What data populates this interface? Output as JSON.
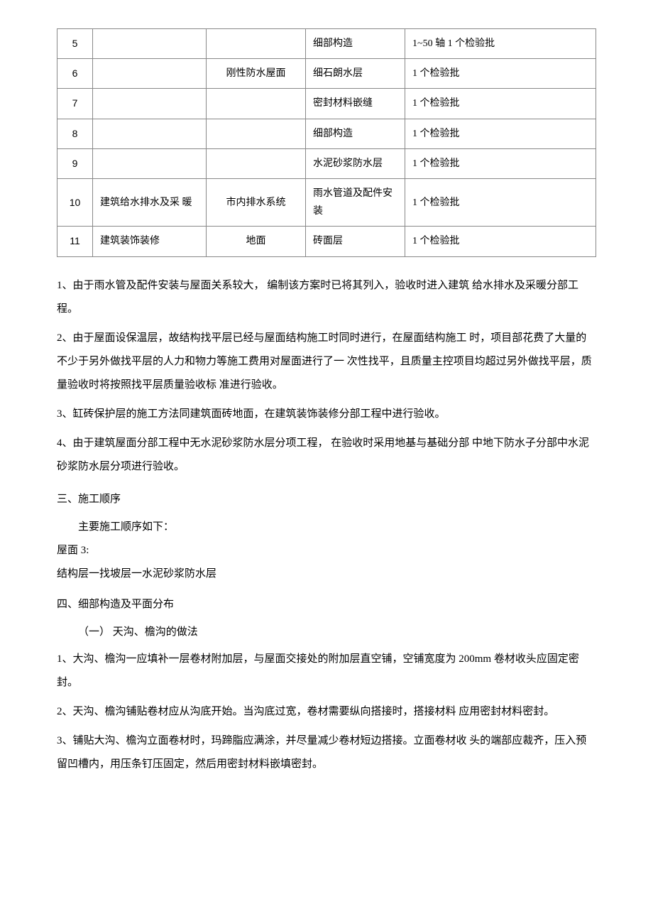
{
  "table": {
    "rows": [
      {
        "num": "5",
        "col2": "",
        "col3": "",
        "col4": "细部构造",
        "col5": "1~50 轴 1 个检验批"
      },
      {
        "num": "6",
        "col2": "",
        "col3": "刚性防水屋面",
        "col4": "细石朗水层",
        "col5": "1 个检验批"
      },
      {
        "num": "7",
        "col2": "",
        "col3": "",
        "col4": "密封材料嵌缝",
        "col5": "1 个检验批"
      },
      {
        "num": "8",
        "col2": "",
        "col3": "",
        "col4": "细部构造",
        "col5": "1 个检验批"
      },
      {
        "num": "9",
        "col2": "",
        "col3": "",
        "col4": "水泥砂浆防水层",
        "col5": "1 个检验批"
      },
      {
        "num": "10",
        "col2": "建筑给水排水及采 暖",
        "col3": "市内排水系统",
        "col4": "雨水管道及配件安装",
        "col5": "1 个检验批"
      },
      {
        "num": "11",
        "col2": "建筑装饰装修",
        "col3": "地面",
        "col4": "砖面层",
        "col5": "1 个检验批"
      }
    ]
  },
  "notes": [
    "1、由于雨水管及配件安装与屋面关系较大， 编制该方案时已将其列入，验收时进入建筑 给水排水及采暖分部工程。",
    "2、由于屋面设保温层，故结构找平层已经与屋面结构施工时同时进行，在屋面结构施工 时，项目部花费了大量的不少于另外做找平层的人力和物力等施工费用对屋面进行了一 次性找平，且质量主控项目均超过另外做找平层，质量验收时将按照找平层质量验收标 准进行验收。",
    "3、缸砖保护层的施工方法同建筑面砖地面，在建筑装饰装修分部工程中进行验收。",
    "4、由于建筑屋面分部工程中无水泥砂浆防水层分项工程， 在验收时采用地基与基础分部 中地下防水子分部中水泥砂浆防水层分项进行验收。"
  ],
  "section3": {
    "heading": "三、施工顺序",
    "sub1": "主要施工顺序如下：",
    "sub2": "屋面 3:",
    "sub3": "结构层一找坡层一水泥砂浆防水层"
  },
  "section4": {
    "heading": "四、细部构造及平面分布",
    "sub": "（一） 天沟、檐沟的做法",
    "items": [
      "1、大沟、檐沟一应填补一层卷材附加层，与屋面交接处的附加层直空铺，空铺宽度为 200mm 卷材收头应固定密封。",
      "2、天沟、檐沟铺贴卷材应从沟底开始。当沟底过宽，卷材需要纵向搭接时，搭接材料 应用密封材料密封。",
      "3、铺贴大沟、檐沟立面卷材时，玛蹄脂应满涂，并尽量减少卷材短边搭接。立面卷材收 头的端部应裁齐，压入预留凹槽内，用压条钉压固定，然后用密封材料嵌填密封。"
    ]
  }
}
